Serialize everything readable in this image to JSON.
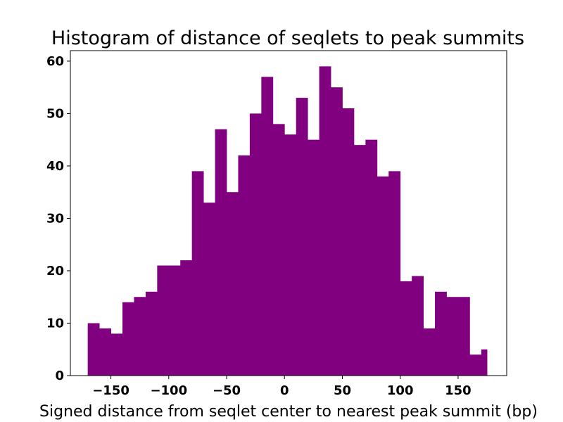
{
  "chart_data": {
    "type": "bar",
    "title": "Histogram of distance of seqlets to peak summits",
    "xlabel": "Signed distance from seqlet center to nearest peak summit (bp)",
    "ylabel": "",
    "bar_color": "#800080",
    "xlim": [
      -185,
      192
    ],
    "ylim": [
      0,
      62
    ],
    "xticks": [
      -150,
      -100,
      -50,
      0,
      50,
      100,
      150
    ],
    "xtick_labels": [
      "−150",
      "−100",
      "−50",
      "0",
      "50",
      "100",
      "150"
    ],
    "yticks": [
      0,
      10,
      20,
      30,
      40,
      50,
      60
    ],
    "ytick_labels": [
      "0",
      "10",
      "20",
      "30",
      "40",
      "50",
      "60"
    ],
    "grid": false,
    "bin_edges": [
      -170,
      -160,
      -150,
      -140,
      -130,
      -120,
      -110,
      -100,
      -90,
      -80,
      -70,
      -60,
      -50,
      -40,
      -30,
      -20,
      -10,
      0,
      10,
      20,
      30,
      40,
      50,
      60,
      70,
      80,
      90,
      100,
      110,
      120,
      130,
      140,
      150,
      160,
      170,
      175
    ],
    "counts": [
      10,
      9,
      8,
      14,
      15,
      16,
      21,
      21,
      22,
      39,
      33,
      47,
      35,
      42,
      50,
      57,
      48,
      46,
      53,
      45,
      59,
      55,
      51,
      44,
      45,
      38,
      39,
      18,
      19,
      9,
      16,
      15,
      15,
      4,
      5
    ]
  }
}
